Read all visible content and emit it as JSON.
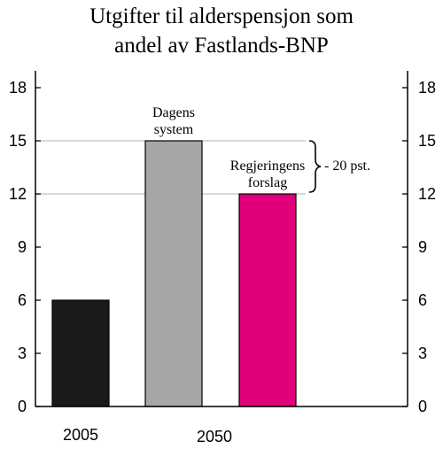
{
  "chart_data": {
    "type": "bar",
    "title_lines": [
      "Utgifter til alderspensjon som",
      "andel av Fastlands-BNP"
    ],
    "xlabel": "",
    "ylabel": "",
    "ylim": [
      0,
      18
    ],
    "yticks": [
      0,
      3,
      6,
      9,
      12,
      15,
      18
    ],
    "category_labels": [
      "2005",
      "2050"
    ],
    "bars": [
      {
        "name": "2005",
        "value": 6,
        "color": "#1a1a1a",
        "label_lines": []
      },
      {
        "name": "Dagens system",
        "value": 15,
        "color": "#a6a6a6",
        "label_lines": [
          "Dagens",
          "system"
        ]
      },
      {
        "name": "Regjeringens forslag",
        "value": 12,
        "color": "#e0007a",
        "label_lines": [
          "Regjeringens",
          "forslag"
        ]
      }
    ],
    "reference_lines": [
      15,
      12
    ],
    "bracket_annotation": "- 20 pst.",
    "grid": false,
    "legend": "none"
  }
}
